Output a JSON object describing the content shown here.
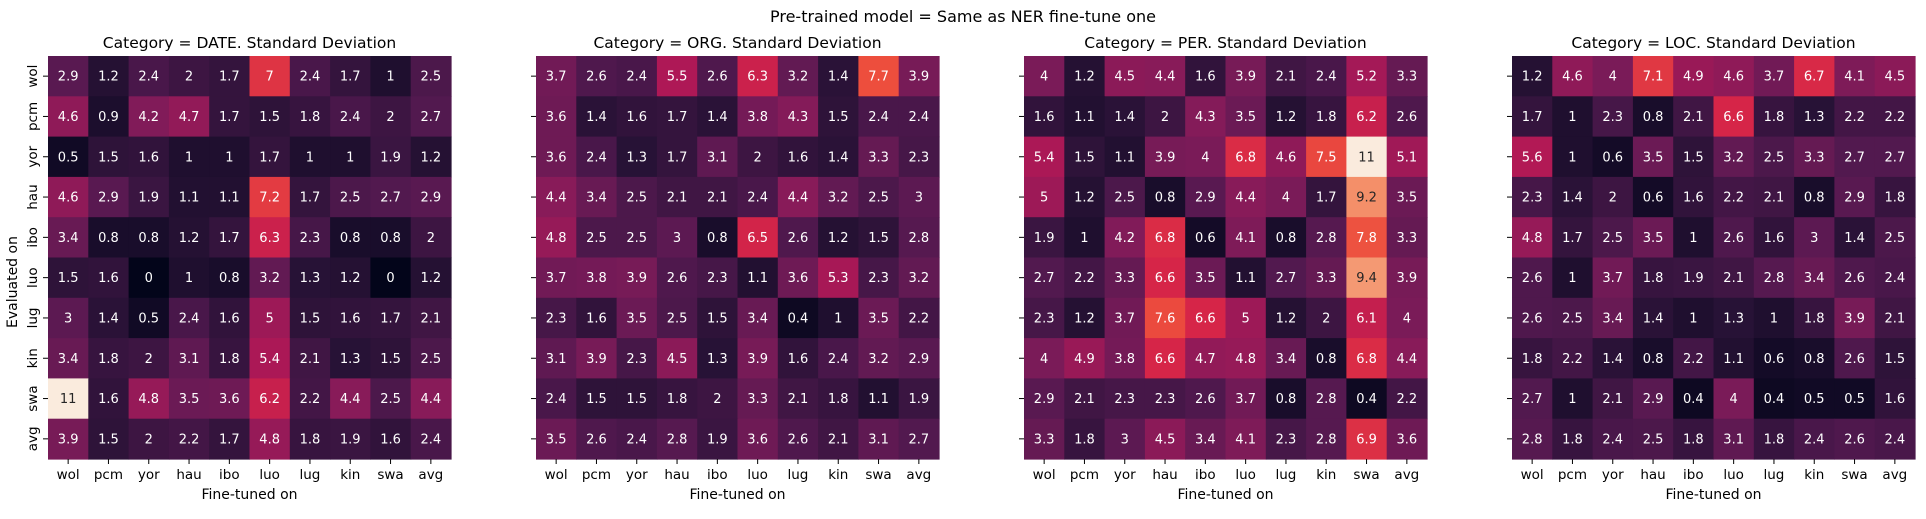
{
  "figure": {
    "suptitle": "Pre-trained model = Same as NER fine-tune one",
    "ylabel": "Evaluated on",
    "xlabel": "Fine-tuned on"
  },
  "chart_data": [
    {
      "type": "heatmap",
      "title": "Category = DATE. Standard Deviation",
      "xlabel": "Fine-tuned on",
      "ylabel": "Evaluated on",
      "x": [
        "wol",
        "pcm",
        "yor",
        "hau",
        "ibo",
        "luo",
        "lug",
        "kin",
        "swa",
        "avg"
      ],
      "y": [
        "wol",
        "pcm",
        "yor",
        "hau",
        "ibo",
        "luo",
        "lug",
        "kin",
        "swa",
        "avg"
      ],
      "values": [
        [
          2.9,
          1.2,
          2.4,
          2,
          1.7,
          7,
          2.4,
          1.7,
          1,
          2.5
        ],
        [
          4.6,
          0.9,
          4.2,
          4.7,
          1.7,
          1.5,
          1.8,
          2.4,
          2,
          2.7
        ],
        [
          0.5,
          1.5,
          1.6,
          1,
          1,
          1.7,
          1,
          1,
          1.9,
          1.2
        ],
        [
          4.6,
          2.9,
          1.9,
          1.1,
          1.1,
          7.2,
          1.7,
          2.5,
          2.7,
          2.9
        ],
        [
          3.4,
          0.8,
          0.8,
          1.2,
          1.7,
          6.3,
          2.3,
          0.8,
          0.8,
          2
        ],
        [
          1.5,
          1.6,
          0,
          1,
          0.8,
          3.2,
          1.3,
          1.2,
          0,
          1.2
        ],
        [
          3,
          1.4,
          0.5,
          2.4,
          1.6,
          5,
          1.5,
          1.6,
          1.7,
          2.1
        ],
        [
          3.4,
          1.8,
          2,
          3.1,
          1.8,
          5.4,
          2.1,
          1.3,
          1.5,
          2.5
        ],
        [
          11,
          1.6,
          4.8,
          3.5,
          3.6,
          6.2,
          2.2,
          4.4,
          2.5,
          4.4
        ],
        [
          3.9,
          1.5,
          2,
          2.2,
          1.7,
          4.8,
          1.8,
          1.9,
          1.6,
          2.4
        ]
      ],
      "vmin": 0,
      "vmax": 11,
      "colormap": "rocket"
    },
    {
      "type": "heatmap",
      "title": "Category = ORG. Standard Deviation",
      "xlabel": "Fine-tuned on",
      "x": [
        "wol",
        "pcm",
        "yor",
        "hau",
        "ibo",
        "luo",
        "lug",
        "kin",
        "swa",
        "avg"
      ],
      "y": [
        "wol",
        "pcm",
        "yor",
        "hau",
        "ibo",
        "luo",
        "lug",
        "kin",
        "swa",
        "avg"
      ],
      "values": [
        [
          3.7,
          2.6,
          2.4,
          5.5,
          2.6,
          6.3,
          3.2,
          1.4,
          7.7,
          3.9
        ],
        [
          3.6,
          1.4,
          1.6,
          1.7,
          1.4,
          3.8,
          4.3,
          1.5,
          2.4,
          2.4
        ],
        [
          3.6,
          2.4,
          1.3,
          1.7,
          3.1,
          2,
          1.6,
          1.4,
          3.3,
          2.3
        ],
        [
          4.4,
          3.4,
          2.5,
          2.1,
          2.1,
          2.4,
          4.4,
          3.2,
          2.5,
          3
        ],
        [
          4.8,
          2.5,
          2.5,
          3,
          0.8,
          6.5,
          2.6,
          1.2,
          1.5,
          2.8
        ],
        [
          3.7,
          3.8,
          3.9,
          2.6,
          2.3,
          1.1,
          3.6,
          5.3,
          2.3,
          3.2
        ],
        [
          2.3,
          1.6,
          3.5,
          2.5,
          1.5,
          3.4,
          0.4,
          1,
          3.5,
          2.2
        ],
        [
          3.1,
          3.9,
          2.3,
          4.5,
          1.3,
          3.9,
          1.6,
          2.4,
          3.2,
          2.9
        ],
        [
          2.4,
          1.5,
          1.5,
          1.8,
          2,
          3.3,
          2.1,
          1.8,
          1.1,
          1.9
        ],
        [
          3.5,
          2.6,
          2.4,
          2.8,
          1.9,
          3.6,
          2.6,
          2.1,
          3.1,
          2.7
        ]
      ],
      "vmin": 0,
      "vmax": 11,
      "colormap": "rocket"
    },
    {
      "type": "heatmap",
      "title": "Category = PER. Standard Deviation",
      "xlabel": "Fine-tuned on",
      "x": [
        "wol",
        "pcm",
        "yor",
        "hau",
        "ibo",
        "luo",
        "lug",
        "kin",
        "swa",
        "avg"
      ],
      "y": [
        "wol",
        "pcm",
        "yor",
        "hau",
        "ibo",
        "luo",
        "lug",
        "kin",
        "swa",
        "avg"
      ],
      "values": [
        [
          4,
          1.2,
          4.5,
          4.4,
          1.6,
          3.9,
          2.1,
          2.4,
          5.2,
          3.3
        ],
        [
          1.6,
          1.1,
          1.4,
          2,
          4.3,
          3.5,
          1.2,
          1.8,
          6.2,
          2.6
        ],
        [
          5.4,
          1.5,
          1.1,
          3.9,
          4,
          6.8,
          4.6,
          7.5,
          11,
          5.1
        ],
        [
          5,
          1.2,
          2.5,
          0.8,
          2.9,
          4.4,
          4,
          1.7,
          9.2,
          3.5
        ],
        [
          1.9,
          1,
          4.2,
          6.8,
          0.6,
          4.1,
          0.8,
          2.8,
          7.8,
          3.3
        ],
        [
          2.7,
          2.2,
          3.3,
          6.6,
          3.5,
          1.1,
          2.7,
          3.3,
          9.4,
          3.9
        ],
        [
          2.3,
          1.2,
          3.7,
          7.6,
          6.6,
          5,
          1.2,
          2,
          6.1,
          4
        ],
        [
          4,
          4.9,
          3.8,
          6.6,
          4.7,
          4.8,
          3.4,
          0.8,
          6.8,
          4.4
        ],
        [
          2.9,
          2.1,
          2.3,
          2.3,
          2.6,
          3.7,
          0.8,
          2.8,
          0.4,
          2.2
        ],
        [
          3.3,
          1.8,
          3,
          4.5,
          3.4,
          4.1,
          2.3,
          2.8,
          6.9,
          3.6
        ]
      ],
      "vmin": 0,
      "vmax": 11,
      "colormap": "rocket"
    },
    {
      "type": "heatmap",
      "title": "Category = LOC. Standard Deviation",
      "xlabel": "Fine-tuned on",
      "x": [
        "wol",
        "pcm",
        "yor",
        "hau",
        "ibo",
        "luo",
        "lug",
        "kin",
        "swa",
        "avg"
      ],
      "y": [
        "wol",
        "pcm",
        "yor",
        "hau",
        "ibo",
        "luo",
        "lug",
        "kin",
        "swa",
        "avg"
      ],
      "values": [
        [
          1.2,
          4.6,
          4,
          7.1,
          4.9,
          4.6,
          3.7,
          6.7,
          4.1,
          4.5
        ],
        [
          1.7,
          1,
          2.3,
          0.8,
          2.1,
          6.6,
          1.8,
          1.3,
          2.2,
          2.2
        ],
        [
          5.6,
          1,
          0.6,
          3.5,
          1.5,
          3.2,
          2.5,
          3.3,
          2.7,
          2.7
        ],
        [
          2.3,
          1.4,
          2,
          0.6,
          1.6,
          2.2,
          2.1,
          0.8,
          2.9,
          1.8
        ],
        [
          4.8,
          1.7,
          2.5,
          3.5,
          1,
          2.6,
          1.6,
          3,
          1.4,
          2.5
        ],
        [
          2.6,
          1,
          3.7,
          1.8,
          1.9,
          2.1,
          2.8,
          3.4,
          2.6,
          2.4
        ],
        [
          2.6,
          2.5,
          3.4,
          1.4,
          1,
          1.3,
          1,
          1.8,
          3.9,
          2.1
        ],
        [
          1.8,
          2.2,
          1.4,
          0.8,
          2.2,
          1.1,
          0.6,
          0.8,
          2.6,
          1.5
        ],
        [
          2.7,
          1,
          2.1,
          2.9,
          0.4,
          4,
          0.4,
          0.5,
          0.5,
          1.6
        ],
        [
          2.8,
          1.8,
          2.4,
          2.5,
          1.8,
          3.1,
          1.8,
          2.4,
          2.6,
          2.4
        ]
      ],
      "vmin": 0,
      "vmax": 11,
      "colormap": "rocket"
    }
  ]
}
